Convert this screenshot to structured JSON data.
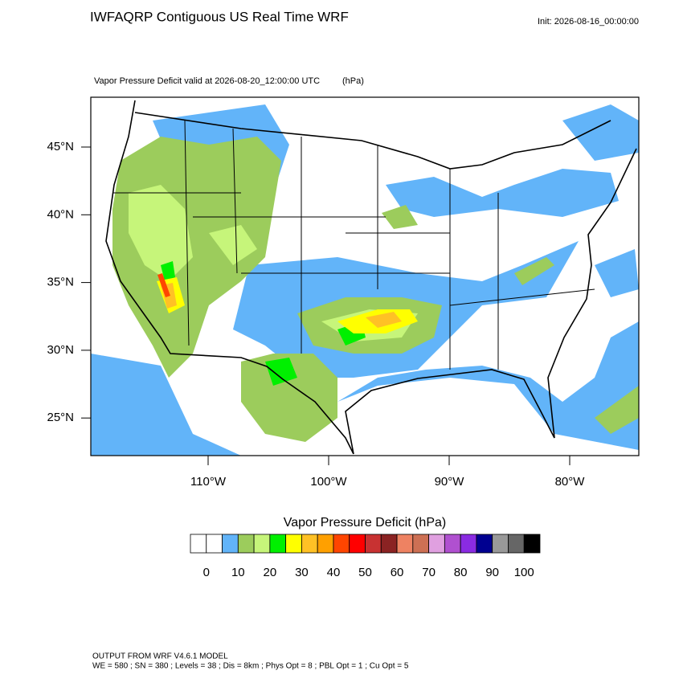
{
  "header": {
    "title": "IWFAQRP Contiguous US Real Time WRF",
    "init": "Init: 2026-08-16_00:00:00"
  },
  "map": {
    "subtitle": "Vapor Pressure Deficit valid at 2026-08-20_12:00:00 UTC",
    "units": "(hPa)",
    "lat_labels": [
      "45°N",
      "40°N",
      "35°N",
      "30°N",
      "25°N"
    ],
    "lon_labels": [
      "110°W",
      "100°W",
      "90°W",
      "80°W"
    ]
  },
  "colorbar": {
    "title": "Vapor Pressure Deficit  (hPa)",
    "colors": [
      "#ffffff",
      "#ffffff",
      "#62b4f9",
      "#9ccc5c",
      "#c6f57a",
      "#00f000",
      "#ffff00",
      "#ffc125",
      "#ffa000",
      "#ff4500",
      "#ff0000",
      "#c83232",
      "#8b2323",
      "#ee8262",
      "#cd7054",
      "#e0a0e0",
      "#b050d0",
      "#8a2be2",
      "#000090",
      "#999999",
      "#666666",
      "#000000"
    ],
    "ticks": [
      0,
      10,
      20,
      30,
      40,
      50,
      60,
      70,
      80,
      90,
      100
    ]
  },
  "footer": {
    "line1": "OUTPUT FROM WRF V4.6.1 MODEL",
    "line2": "WE = 580 ; SN = 380 ; Levels = 38 ; Dis = 8km ; Phys Opt = 8 ; PBL Opt = 1 ; Cu Opt = 5"
  }
}
